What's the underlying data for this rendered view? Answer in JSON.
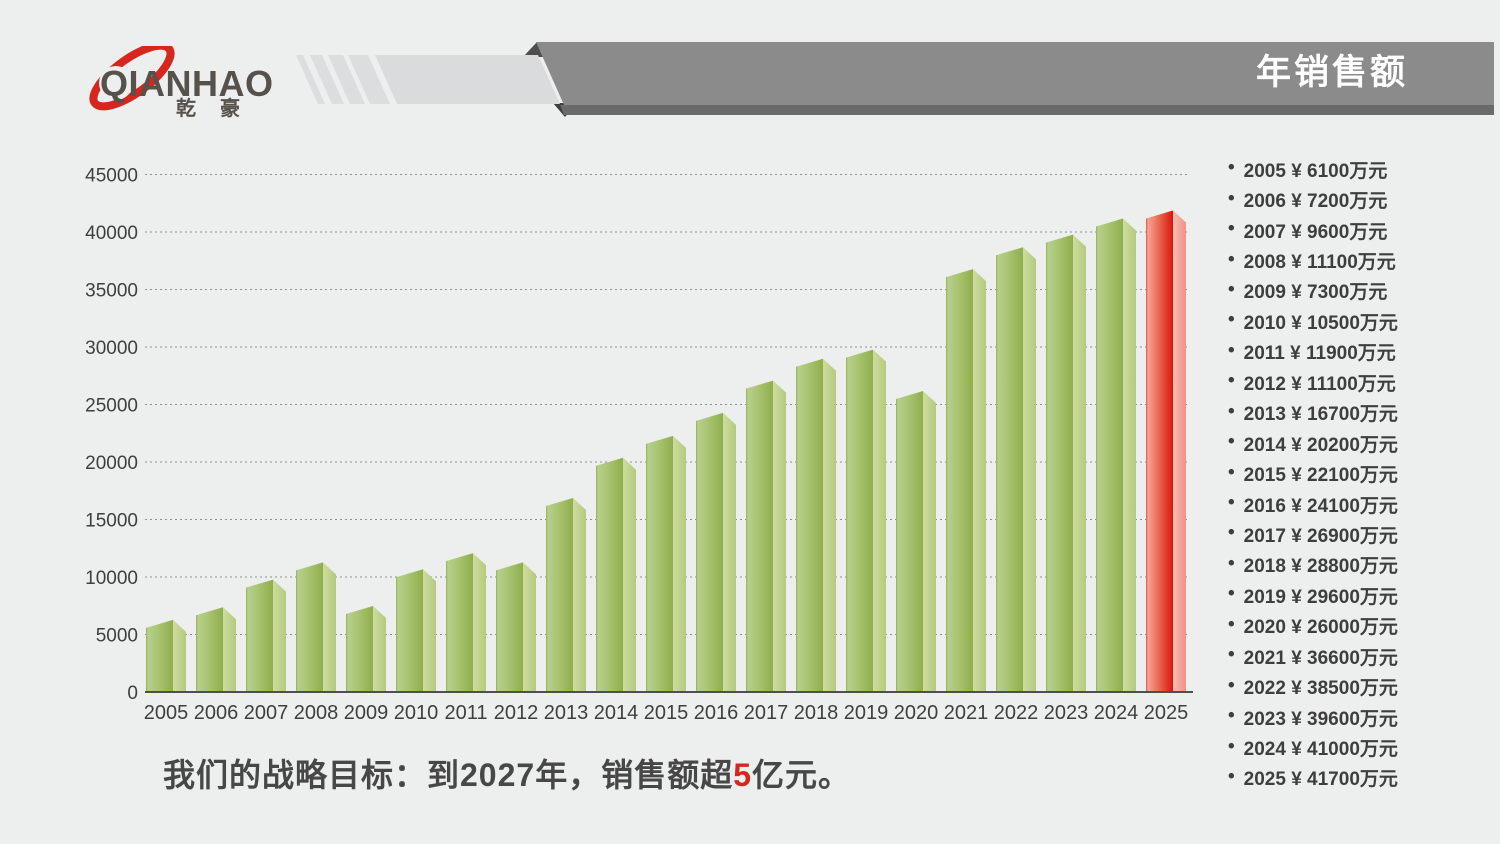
{
  "page": {
    "background": "#edeeee"
  },
  "logo": {
    "wordmark": "QIANHAO",
    "subtext": "乾豪",
    "text_color": "#56514b",
    "swoosh_color": "#d5271d"
  },
  "header": {
    "title": "年销售额",
    "title_color": "#ffffff",
    "banner_color": "#8b8b8b",
    "banner_shadow_color": "#696a6a",
    "fold_color": "#4f4f4f",
    "fold_color_dark": "#3e3e3e",
    "light_banner_color": "#dadbdc",
    "stripe_color": "#dcddde"
  },
  "chart_data": {
    "type": "bar",
    "title": "年销售额",
    "categories": [
      "2005",
      "2006",
      "2007",
      "2008",
      "2009",
      "2010",
      "2011",
      "2012",
      "2013",
      "2014",
      "2015",
      "2016",
      "2017",
      "2018",
      "2019",
      "2020",
      "2021",
      "2022",
      "2023",
      "2024",
      "2025"
    ],
    "values": [
      6100,
      7200,
      9600,
      11100,
      7300,
      10500,
      11900,
      11100,
      16700,
      20200,
      22100,
      24100,
      26900,
      28800,
      29600,
      26000,
      36600,
      38500,
      39600,
      41000,
      41700
    ],
    "unit": "万元",
    "ylim": [
      0,
      45000
    ],
    "yticks": [
      0,
      5000,
      10000,
      15000,
      20000,
      25000,
      30000,
      35000,
      40000,
      45000
    ],
    "grid": "dotted-horizontal",
    "legend_position": "right",
    "highlight_category": "2025",
    "bar_color_green": "#a5c061",
    "bar_color_red": "#e02819"
  },
  "colors": {
    "green": {
      "edge": "#93b153",
      "light": "#b7cf8e",
      "mid": "#a9c472",
      "dark": "#8fae4b",
      "side_light": "#cddc9f",
      "side_dark": "#b5ca7d"
    },
    "red": {
      "edge": "#dd5242",
      "light": "#f4a495",
      "mid": "#ea6c58",
      "dark": "#dc1505",
      "side_light": "#f6beb5",
      "side_dark": "#ef9185"
    },
    "grid": "#909090",
    "axis": "#4f4f4f",
    "label": "#3f3f3f"
  },
  "legend_list": {
    "bullet": "•",
    "currency": "¥",
    "unit": "万元"
  },
  "statement": {
    "before": "我们的战略目标：到2027年，销售额超",
    "highlight": "5",
    "after": "亿元。",
    "highlight_color": "#d5271d"
  }
}
